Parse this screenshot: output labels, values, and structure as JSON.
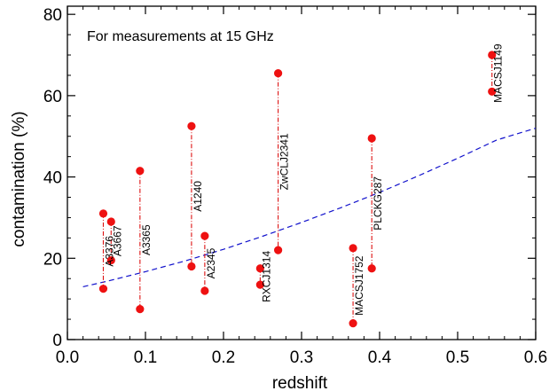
{
  "chart_data": {
    "type": "scatter",
    "annotation": "For measurements at 15 GHz",
    "xlabel": "redshift",
    "ylabel": "contamination (%)",
    "xlim": [
      0.0,
      0.6
    ],
    "ylim": [
      0,
      82
    ],
    "x_ticks": [
      0.0,
      0.1,
      0.2,
      0.3,
      0.4,
      0.5,
      0.6
    ],
    "x_tick_labels": [
      "0.0",
      "0.1",
      "0.2",
      "0.3",
      "0.4",
      "0.5",
      "0.6"
    ],
    "y_ticks": [
      0,
      20,
      40,
      60,
      80
    ],
    "y_tick_labels": [
      "0",
      "20",
      "40",
      "60",
      "80"
    ],
    "grid": false,
    "colors": {
      "points": "#ee1111",
      "range_line": "#dd1111",
      "trend": "#1111cc",
      "axes": "#000000"
    },
    "clusters": [
      {
        "name": "A3376",
        "z": 0.046,
        "low": 12.5,
        "high": 31.0
      },
      {
        "name": "A3667",
        "z": 0.056,
        "low": 19.5,
        "high": 29.0
      },
      {
        "name": "A3365",
        "z": 0.093,
        "low": 7.5,
        "high": 41.5
      },
      {
        "name": "A1240",
        "z": 0.159,
        "low": 18.0,
        "high": 52.5
      },
      {
        "name": "A2345",
        "z": 0.176,
        "low": 12.0,
        "high": 25.5
      },
      {
        "name": "RXCJ1314",
        "z": 0.247,
        "low": 13.5,
        "high": 17.5
      },
      {
        "name": "ZwCLJ2341",
        "z": 0.27,
        "low": 22.0,
        "high": 65.5
      },
      {
        "name": "MACSJ1752",
        "z": 0.366,
        "low": 4.0,
        "high": 22.5
      },
      {
        "name": "PLCKG287",
        "z": 0.39,
        "low": 17.5,
        "high": 49.5
      },
      {
        "name": "MACSJ1149",
        "z": 0.544,
        "low": 61.0,
        "high": 70.0
      }
    ],
    "trend_line": {
      "style": "dashed",
      "x": [
        0.02,
        0.05,
        0.1,
        0.15,
        0.2,
        0.25,
        0.3,
        0.35,
        0.4,
        0.45,
        0.5,
        0.55,
        0.6
      ],
      "y": [
        13.0,
        14.3,
        16.7,
        19.3,
        22.2,
        25.4,
        28.8,
        32.4,
        36.2,
        40.3,
        44.6,
        49.1,
        52.0
      ]
    }
  }
}
